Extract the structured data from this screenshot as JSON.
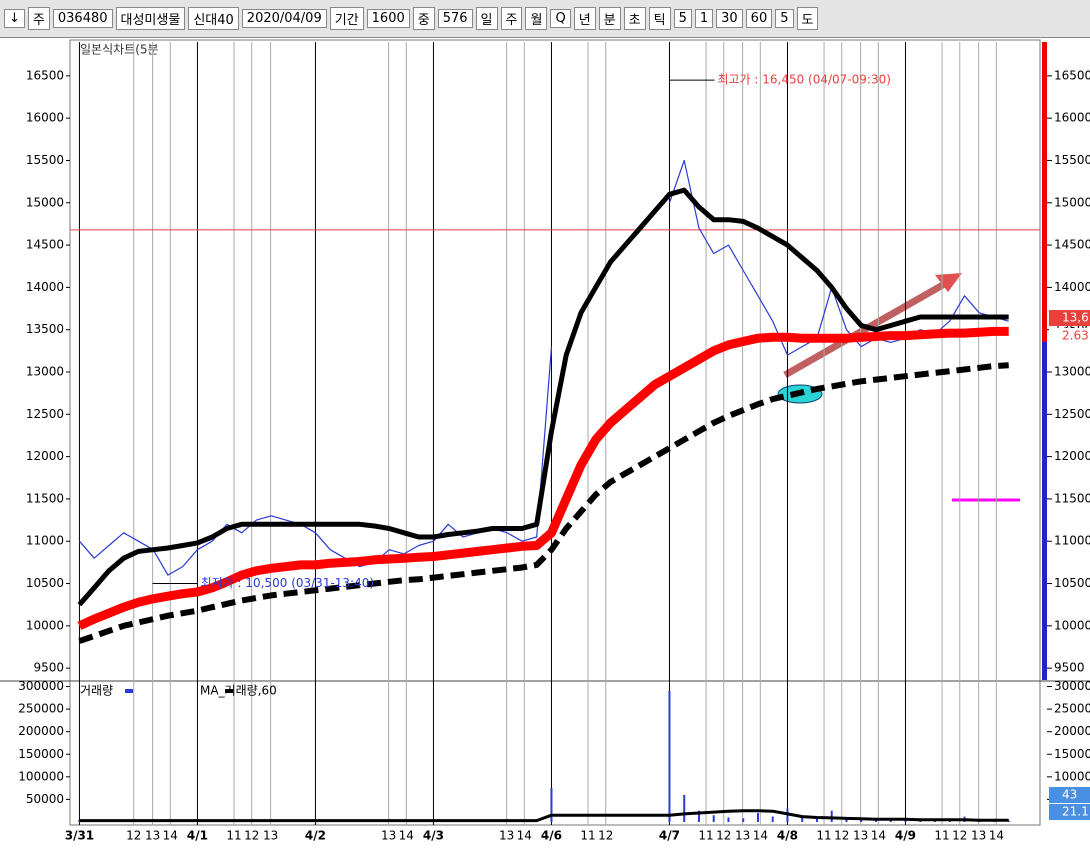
{
  "toolbar": {
    "items": [
      "↓",
      "주",
      "036480",
      "대성미생물",
      "신대40",
      "2020/04/09",
      "기간",
      "1600",
      "중",
      "576",
      "일",
      "주",
      "월",
      "Q",
      "년",
      "분",
      "초",
      "틱",
      "5",
      "1",
      "30",
      "60",
      "5",
      "도"
    ]
  },
  "chart_data": [
    {
      "type": "line",
      "title": "일본식차트(5분",
      "x": [
        0,
        0.125,
        0.25,
        0.375,
        0.5,
        0.625,
        0.75,
        0.875,
        1,
        1.125,
        1.25,
        1.375,
        1.5,
        1.625,
        1.75,
        1.875,
        2,
        2.125,
        2.25,
        2.375,
        2.5,
        2.625,
        2.75,
        2.875,
        3,
        3.125,
        3.25,
        3.375,
        3.5,
        3.625,
        3.75,
        3.875,
        4,
        4.125,
        4.25,
        4.375,
        4.5,
        4.625,
        4.75,
        4.875,
        5,
        5.125,
        5.25,
        5.375,
        5.5,
        5.625,
        5.75,
        5.875,
        6,
        6.125,
        6.25,
        6.375,
        6.5,
        6.625,
        6.75,
        6.875,
        7,
        7.125,
        7.25,
        7.375,
        7.5,
        7.625,
        7.75,
        7.875
      ],
      "xlim": [
        -0.08,
        8.14
      ],
      "xticks": [
        {
          "value": 0,
          "label": "3/31"
        },
        {
          "value": 0.46,
          "label": "12"
        },
        {
          "value": 0.62,
          "label": "13"
        },
        {
          "value": 0.77,
          "label": "14"
        },
        {
          "value": 1,
          "label": "4/1"
        },
        {
          "value": 1.31,
          "label": "11"
        },
        {
          "value": 1.46,
          "label": "12"
        },
        {
          "value": 1.62,
          "label": "13"
        },
        {
          "value": 2,
          "label": "4/2"
        },
        {
          "value": 2.62,
          "label": "13"
        },
        {
          "value": 2.77,
          "label": "14"
        },
        {
          "value": 3,
          "label": "4/3"
        },
        {
          "value": 3.62,
          "label": "13"
        },
        {
          "value": 3.77,
          "label": "14"
        },
        {
          "value": 4,
          "label": "4/6"
        },
        {
          "value": 4.31,
          "label": "11"
        },
        {
          "value": 4.46,
          "label": "12"
        },
        {
          "value": 5,
          "label": "4/7"
        },
        {
          "value": 5.31,
          "label": "11"
        },
        {
          "value": 5.46,
          "label": "12"
        },
        {
          "value": 5.62,
          "label": "13"
        },
        {
          "value": 5.77,
          "label": "14"
        },
        {
          "value": 6,
          "label": "4/8"
        },
        {
          "value": 6.31,
          "label": "11"
        },
        {
          "value": 6.46,
          "label": "12"
        },
        {
          "value": 6.62,
          "label": "13"
        },
        {
          "value": 6.77,
          "label": "14"
        },
        {
          "value": 7,
          "label": "4/9"
        },
        {
          "value": 7.31,
          "label": "11"
        },
        {
          "value": 7.46,
          "label": "12"
        },
        {
          "value": 7.62,
          "label": "13"
        },
        {
          "value": 7.77,
          "label": "14"
        }
      ],
      "ylim": [
        9360,
        16900
      ],
      "yticks": [
        9500,
        10000,
        10500,
        11000,
        11500,
        12000,
        12500,
        13000,
        13500,
        14000,
        14500,
        15000,
        15500,
        16000,
        16500
      ],
      "hline": {
        "value": 14680,
        "color": "#e8413c"
      },
      "series": [
        {
          "color": "#2b3bd6",
          "width": 1.2,
          "style": "solid",
          "values": [
            11000,
            10800,
            10950,
            11100,
            11000,
            10900,
            10600,
            10700,
            10900,
            11000,
            11200,
            11100,
            11250,
            11300,
            11250,
            11200,
            11100,
            10900,
            10800,
            10700,
            10750,
            10900,
            10850,
            10950,
            11000,
            11200,
            11050,
            11100,
            11150,
            11100,
            11000,
            11050,
            13300,
            null,
            null,
            null,
            null,
            null,
            null,
            null,
            15000,
            15500,
            14700,
            14400,
            14500,
            14200,
            13900,
            13600,
            13200,
            13300,
            13400,
            14000,
            13500,
            13300,
            13400,
            13350,
            13400,
            13500,
            13450,
            13600,
            13900,
            13700,
            13650,
            13600
          ]
        },
        {
          "color": "#000000",
          "width": 5,
          "style": "solid",
          "values": [
            10250,
            10450,
            10650,
            10800,
            10880,
            10900,
            10920,
            10950,
            10980,
            11050,
            11150,
            11200,
            11200,
            11200,
            11200,
            11200,
            11200,
            11200,
            11200,
            11200,
            11180,
            11150,
            11100,
            11050,
            11050,
            11080,
            11100,
            11120,
            11150,
            11150,
            11150,
            11200,
            12300,
            13200,
            13700,
            14000,
            14300,
            14500,
            14700,
            14900,
            15100,
            15150,
            14950,
            14800,
            14800,
            14780,
            14700,
            14600,
            14500,
            14350,
            14200,
            14000,
            13750,
            13550,
            13500,
            13550,
            13600,
            13650,
            13650,
            13650,
            13650,
            13650,
            13650,
            13650
          ]
        },
        {
          "color": "#ff0000",
          "width": 9,
          "style": "solid",
          "values": [
            10000,
            10080,
            10150,
            10220,
            10280,
            10320,
            10350,
            10380,
            10400,
            10450,
            10520,
            10600,
            10650,
            10680,
            10700,
            10720,
            10720,
            10740,
            10750,
            10760,
            10780,
            10790,
            10800,
            10810,
            10820,
            10840,
            10860,
            10880,
            10900,
            10920,
            10940,
            10950,
            11100,
            11500,
            11900,
            12200,
            12400,
            12550,
            12700,
            12850,
            12950,
            13050,
            13150,
            13250,
            13320,
            13360,
            13400,
            13410,
            13410,
            13400,
            13400,
            13400,
            13400,
            13410,
            13420,
            13430,
            13430,
            13440,
            13450,
            13460,
            13460,
            13470,
            13480,
            13480
          ]
        },
        {
          "color": "#000000",
          "width": 6,
          "style": "dashed",
          "values": [
            9820,
            9880,
            9940,
            10000,
            10040,
            10080,
            10120,
            10150,
            10180,
            10220,
            10260,
            10300,
            10330,
            10360,
            10380,
            10400,
            10420,
            10440,
            10460,
            10480,
            10500,
            10520,
            10540,
            10550,
            10570,
            10590,
            10610,
            10630,
            10650,
            10670,
            10690,
            10720,
            10900,
            11150,
            11350,
            11550,
            11700,
            11800,
            11900,
            12000,
            12100,
            12200,
            12300,
            12400,
            12480,
            12550,
            12620,
            12680,
            12720,
            12760,
            12800,
            12830,
            12860,
            12890,
            12910,
            12930,
            12950,
            12970,
            12990,
            13010,
            13030,
            13050,
            13070,
            13080
          ]
        }
      ],
      "annotations": [
        {
          "text": "최고가 : 16,450 (04/07-09:30)",
          "x": 5.0,
          "y": 16450,
          "color": "#e8413c"
        },
        {
          "text": "최저가 : 10,500 (03/31-13:40)",
          "x": 0.62,
          "y": 10500,
          "color": "#2b3bd6"
        }
      ],
      "badges": [
        {
          "text": "13,6",
          "color": "#e8413c"
        },
        {
          "text": "2.63",
          "color": "#e8413c"
        }
      ]
    },
    {
      "type": "bar",
      "ylim": [
        0,
        310000
      ],
      "yticks": [
        50000,
        100000,
        150000,
        200000,
        250000,
        300000
      ],
      "series": [
        {
          "name": "거래량",
          "color": "#2b3bd6",
          "values": [
            5000,
            3000,
            2000,
            4000,
            3000,
            2000,
            6000,
            3000,
            4000,
            3000,
            5000,
            3000,
            4000,
            3000,
            2000,
            3000,
            3000,
            4000,
            5000,
            3000,
            2000,
            4000,
            3000,
            3000,
            4000,
            3000,
            4000,
            3000,
            2000,
            3000,
            2000,
            3000,
            75000,
            null,
            null,
            null,
            null,
            null,
            null,
            null,
            290000,
            60000,
            25000,
            15000,
            10000,
            8000,
            20000,
            12000,
            30000,
            10000,
            8000,
            25000,
            8000,
            6000,
            5000,
            4000,
            5000,
            6000,
            4000,
            5000,
            12000,
            5000,
            4000,
            3000
          ]
        },
        {
          "name": "MA_거래량,60",
          "color": "#000000",
          "values": [
            3000,
            3000,
            3000,
            3000,
            3000,
            3000,
            3000,
            3000,
            3000,
            3000,
            3000,
            3000,
            3000,
            3000,
            3000,
            3000,
            3000,
            3000,
            3000,
            3000,
            3000,
            3000,
            3000,
            3000,
            3000,
            3000,
            3000,
            3000,
            3000,
            3000,
            3000,
            3000,
            15000,
            15000,
            15000,
            15000,
            15000,
            15000,
            15000,
            15000,
            15000,
            18000,
            20000,
            22000,
            24000,
            25000,
            25000,
            24000,
            18000,
            12000,
            10000,
            9000,
            8000,
            7000,
            6000,
            6000,
            6000,
            5000,
            5000,
            5000,
            5000,
            4000,
            4000,
            4000
          ]
        }
      ],
      "badges": [
        {
          "text": "43",
          "color": "#4a90e2"
        },
        {
          "text": "21.1",
          "color": "#4a90e2"
        }
      ]
    }
  ]
}
